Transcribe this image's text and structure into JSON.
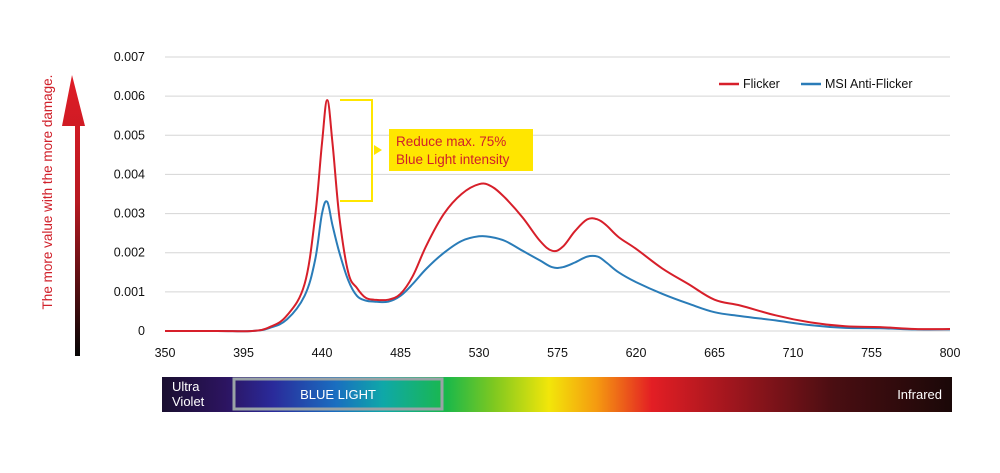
{
  "chart_data": {
    "type": "line",
    "title": "",
    "xlabel": "",
    "ylabel": "The more value with the more damage.",
    "xlim": [
      350,
      800
    ],
    "ylim": [
      0,
      0.007
    ],
    "x_ticks": [
      "350",
      "395",
      "440",
      "485",
      "530",
      "575",
      "620",
      "665",
      "710",
      "755",
      "800"
    ],
    "y_ticks": [
      "0",
      "0.001",
      "0.002",
      "0.003",
      "0.004",
      "0.005",
      "0.006",
      "0.007"
    ],
    "grid": true,
    "legend_position": "top-right",
    "series": [
      {
        "name": "Flicker",
        "color": "#d71f2a",
        "x": [
          350,
          380,
          400,
          410,
          420,
          430,
          436,
          440,
          443,
          446,
          450,
          455,
          460,
          465,
          470,
          478,
          485,
          492,
          500,
          510,
          520,
          530,
          537,
          545,
          555,
          565,
          572,
          578,
          585,
          592,
          598,
          603,
          610,
          620,
          635,
          650,
          665,
          680,
          700,
          720,
          740,
          760,
          780,
          800
        ],
        "y": [
          0,
          0,
          0,
          0.0001,
          0.0004,
          0.0012,
          0.0029,
          0.0048,
          0.0059,
          0.0048,
          0.0029,
          0.0015,
          0.0011,
          0.00085,
          0.0008,
          0.0008,
          0.00095,
          0.0014,
          0.0022,
          0.003,
          0.0035,
          0.00375,
          0.0037,
          0.0034,
          0.0029,
          0.0023,
          0.00205,
          0.00215,
          0.00255,
          0.00285,
          0.00285,
          0.0027,
          0.0024,
          0.0021,
          0.0016,
          0.0012,
          0.0008,
          0.00065,
          0.0004,
          0.00022,
          0.00012,
          0.0001,
          5e-05,
          5e-05
        ]
      },
      {
        "name": "MSI Anti-Flicker",
        "color": "#2a7cb8",
        "x": [
          350,
          380,
          400,
          410,
          420,
          430,
          436,
          440,
          443,
          446,
          450,
          455,
          460,
          465,
          470,
          478,
          485,
          492,
          500,
          510,
          520,
          530,
          537,
          545,
          555,
          565,
          572,
          578,
          585,
          592,
          598,
          603,
          610,
          620,
          635,
          650,
          665,
          680,
          700,
          720,
          740,
          760,
          780,
          800
        ],
        "y": [
          0,
          0,
          0,
          8e-05,
          0.0003,
          0.0009,
          0.0018,
          0.003,
          0.0033,
          0.0027,
          0.002,
          0.0013,
          0.0009,
          0.00078,
          0.00075,
          0.00075,
          0.0009,
          0.0012,
          0.0016,
          0.002,
          0.0023,
          0.00242,
          0.0024,
          0.0023,
          0.00205,
          0.0018,
          0.00163,
          0.00163,
          0.00175,
          0.0019,
          0.0019,
          0.00175,
          0.0015,
          0.00125,
          0.00095,
          0.0007,
          0.00048,
          0.00038,
          0.00027,
          0.00015,
          8e-05,
          7e-05,
          4e-05,
          4e-05
        ]
      }
    ],
    "annotation": {
      "line1": "Reduce  max. 75%",
      "line2": "Blue Light intensity"
    },
    "spectrum_bar": {
      "ultra_violet_line1": "Ultra",
      "ultra_violet_line2": "Violet",
      "blue_light": "BLUE LIGHT",
      "infrared": "Infrared"
    }
  }
}
